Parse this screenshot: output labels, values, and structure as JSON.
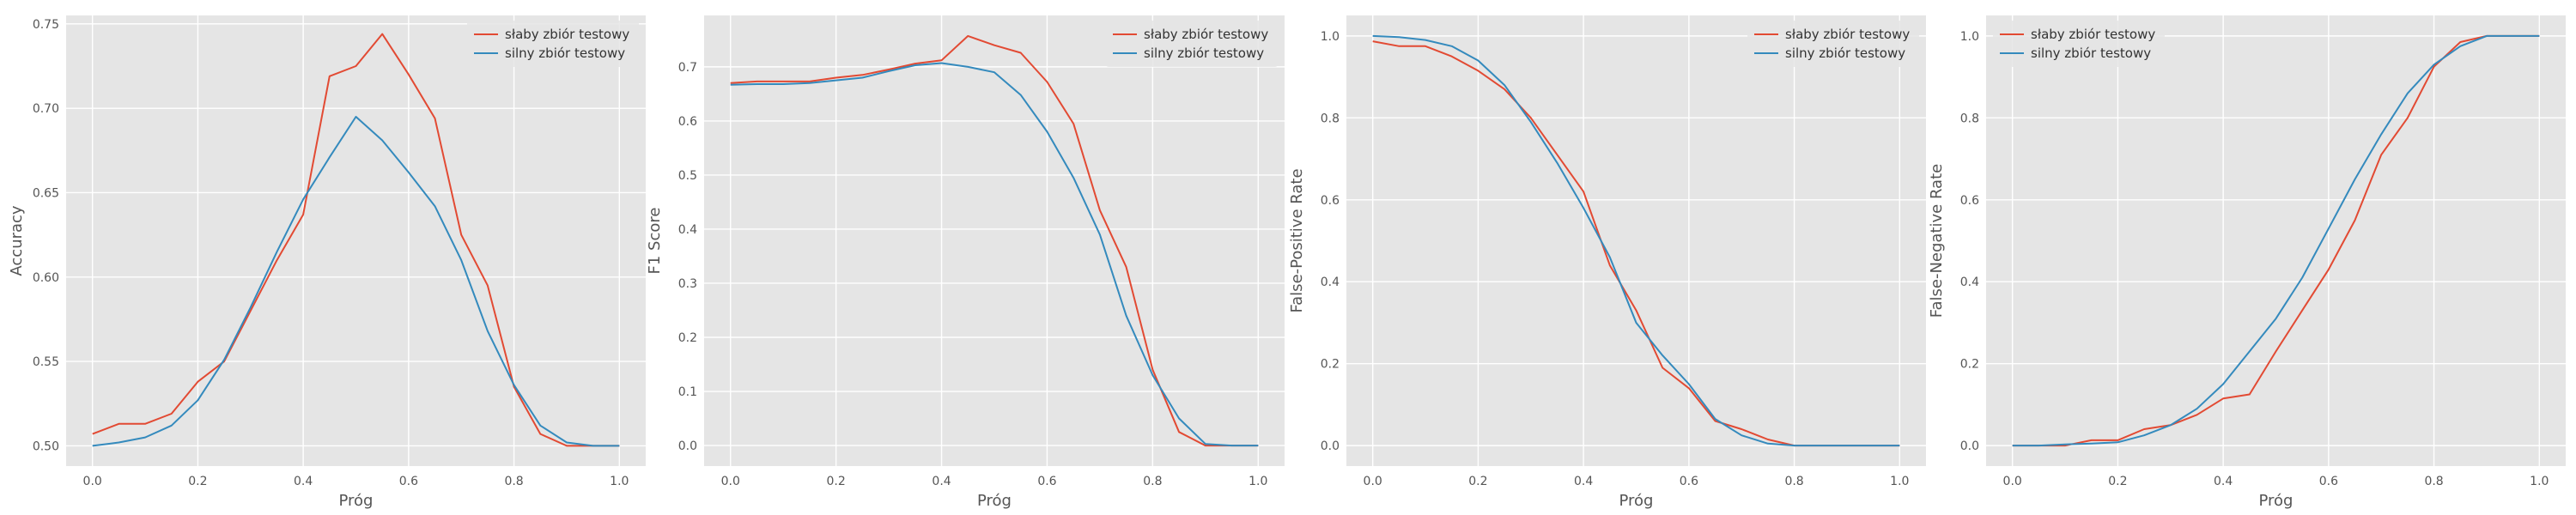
{
  "colors": {
    "background": "#e5e5e5",
    "grid": "#ffffff",
    "series_red": "#e24a33",
    "series_blue": "#348abd"
  },
  "chart_data": [
    {
      "type": "line",
      "xlabel": "Próg",
      "ylabel": "Accuracy",
      "xlim": [
        -0.05,
        1.05
      ],
      "ylim": [
        0.488,
        0.755
      ],
      "xticks": [
        0.0,
        0.2,
        0.4,
        0.6,
        0.8,
        1.0
      ],
      "yticks": [
        0.5,
        0.55,
        0.6,
        0.65,
        0.7,
        0.75
      ],
      "xtick_labels": [
        "0.0",
        "0.2",
        "0.4",
        "0.6",
        "0.8",
        "1.0"
      ],
      "ytick_labels": [
        "0.50",
        "0.55",
        "0.60",
        "0.65",
        "0.70",
        "0.75"
      ],
      "grid": true,
      "legend": "top-right",
      "x": [
        0.0,
        0.05,
        0.1,
        0.15,
        0.2,
        0.25,
        0.3,
        0.35,
        0.4,
        0.45,
        0.5,
        0.55,
        0.6,
        0.65,
        0.7,
        0.75,
        0.8,
        0.85,
        0.9,
        0.95,
        1.0
      ],
      "series": [
        {
          "name": "słaby zbiór testowy",
          "color": "#e24a33",
          "values": [
            0.507,
            0.513,
            0.513,
            0.519,
            0.538,
            0.55,
            0.58,
            0.61,
            0.637,
            0.719,
            0.725,
            0.744,
            0.72,
            0.694,
            0.625,
            0.595,
            0.535,
            0.507,
            0.5,
            0.5,
            0.5
          ]
        },
        {
          "name": "silny zbiór testowy",
          "color": "#348abd",
          "values": [
            0.5,
            0.502,
            0.505,
            0.512,
            0.527,
            0.551,
            0.582,
            0.615,
            0.646,
            0.671,
            0.695,
            0.681,
            0.662,
            0.642,
            0.61,
            0.568,
            0.536,
            0.512,
            0.502,
            0.5,
            0.5
          ]
        }
      ]
    },
    {
      "type": "line",
      "xlabel": "Próg",
      "ylabel": "F1 Score",
      "xlim": [
        -0.05,
        1.05
      ],
      "ylim": [
        -0.038,
        0.795
      ],
      "xticks": [
        0.0,
        0.2,
        0.4,
        0.6,
        0.8,
        1.0
      ],
      "yticks": [
        0.0,
        0.1,
        0.2,
        0.3,
        0.4,
        0.5,
        0.6,
        0.7
      ],
      "xtick_labels": [
        "0.0",
        "0.2",
        "0.4",
        "0.6",
        "0.8",
        "1.0"
      ],
      "ytick_labels": [
        "0.0",
        "0.1",
        "0.2",
        "0.3",
        "0.4",
        "0.5",
        "0.6",
        "0.7"
      ],
      "grid": true,
      "legend": "top-right",
      "x": [
        0.0,
        0.05,
        0.1,
        0.15,
        0.2,
        0.25,
        0.3,
        0.35,
        0.4,
        0.45,
        0.5,
        0.55,
        0.6,
        0.65,
        0.7,
        0.75,
        0.8,
        0.85,
        0.9,
        0.95,
        1.0
      ],
      "series": [
        {
          "name": "słaby zbiór testowy",
          "color": "#e24a33",
          "values": [
            0.67,
            0.673,
            0.673,
            0.673,
            0.68,
            0.685,
            0.695,
            0.706,
            0.712,
            0.757,
            0.74,
            0.726,
            0.672,
            0.595,
            0.435,
            0.33,
            0.14,
            0.025,
            0.0,
            0.0,
            0.0
          ]
        },
        {
          "name": "silny zbiór testowy",
          "color": "#348abd",
          "values": [
            0.667,
            0.668,
            0.668,
            0.67,
            0.675,
            0.68,
            0.692,
            0.703,
            0.707,
            0.7,
            0.69,
            0.648,
            0.58,
            0.495,
            0.39,
            0.24,
            0.13,
            0.05,
            0.003,
            0.0,
            0.0
          ]
        }
      ]
    },
    {
      "type": "line",
      "xlabel": "Próg",
      "ylabel": "False-Positive Rate",
      "xlim": [
        -0.05,
        1.05
      ],
      "ylim": [
        -0.05,
        1.05
      ],
      "xticks": [
        0.0,
        0.2,
        0.4,
        0.6,
        0.8,
        1.0
      ],
      "yticks": [
        0.0,
        0.2,
        0.4,
        0.6,
        0.8,
        1.0
      ],
      "xtick_labels": [
        "0.0",
        "0.2",
        "0.4",
        "0.6",
        "0.8",
        "1.0"
      ],
      "ytick_labels": [
        "0.0",
        "0.2",
        "0.4",
        "0.6",
        "0.8",
        "1.0"
      ],
      "grid": true,
      "legend": "top-right",
      "x": [
        0.0,
        0.05,
        0.1,
        0.15,
        0.2,
        0.25,
        0.3,
        0.35,
        0.4,
        0.45,
        0.5,
        0.55,
        0.6,
        0.65,
        0.7,
        0.75,
        0.8,
        0.85,
        0.9,
        0.95,
        1.0
      ],
      "series": [
        {
          "name": "słaby zbiór testowy",
          "color": "#e24a33",
          "values": [
            0.987,
            0.975,
            0.975,
            0.95,
            0.915,
            0.87,
            0.8,
            0.71,
            0.62,
            0.44,
            0.33,
            0.19,
            0.14,
            0.06,
            0.04,
            0.015,
            0.0,
            0.0,
            0.0,
            0.0,
            0.0
          ]
        },
        {
          "name": "silny zbiór testowy",
          "color": "#348abd",
          "values": [
            1.0,
            0.997,
            0.99,
            0.975,
            0.94,
            0.88,
            0.79,
            0.69,
            0.58,
            0.46,
            0.3,
            0.22,
            0.15,
            0.065,
            0.025,
            0.005,
            0.0,
            0.0,
            0.0,
            0.0,
            0.0
          ]
        }
      ]
    },
    {
      "type": "line",
      "xlabel": "Próg",
      "ylabel": "False-Negative Rate",
      "xlim": [
        -0.05,
        1.05
      ],
      "ylim": [
        -0.05,
        1.05
      ],
      "xticks": [
        0.0,
        0.2,
        0.4,
        0.6,
        0.8,
        1.0
      ],
      "yticks": [
        0.0,
        0.2,
        0.4,
        0.6,
        0.8,
        1.0
      ],
      "xtick_labels": [
        "0.0",
        "0.2",
        "0.4",
        "0.6",
        "0.8",
        "1.0"
      ],
      "ytick_labels": [
        "0.0",
        "0.2",
        "0.4",
        "0.6",
        "0.8",
        "1.0"
      ],
      "grid": true,
      "legend": "top-left",
      "x": [
        0.0,
        0.05,
        0.1,
        0.15,
        0.2,
        0.25,
        0.3,
        0.35,
        0.4,
        0.45,
        0.5,
        0.55,
        0.6,
        0.65,
        0.7,
        0.75,
        0.8,
        0.85,
        0.9,
        0.95,
        1.0
      ],
      "series": [
        {
          "name": "słaby zbiór testowy",
          "color": "#e24a33",
          "values": [
            0.0,
            0.0,
            0.0,
            0.013,
            0.013,
            0.04,
            0.05,
            0.075,
            0.115,
            0.125,
            0.23,
            0.33,
            0.43,
            0.55,
            0.71,
            0.8,
            0.925,
            0.985,
            1.0,
            1.0,
            1.0
          ]
        },
        {
          "name": "silny zbiór testowy",
          "color": "#348abd",
          "values": [
            0.0,
            0.0,
            0.003,
            0.005,
            0.008,
            0.025,
            0.05,
            0.09,
            0.15,
            0.23,
            0.31,
            0.41,
            0.53,
            0.65,
            0.76,
            0.86,
            0.93,
            0.975,
            1.0,
            1.0,
            1.0
          ]
        }
      ]
    }
  ]
}
